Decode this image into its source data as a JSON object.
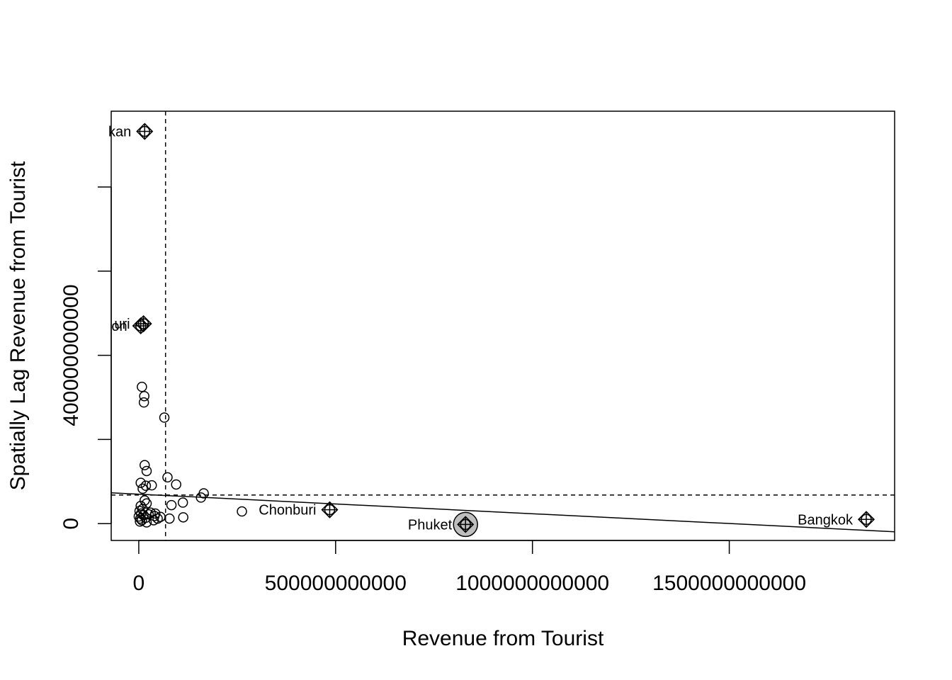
{
  "chart_data": {
    "type": "scatter",
    "title": "",
    "xlabel": "Revenue from Tourist",
    "ylabel": "Spatially Lag Revenue from Tourist",
    "xlim": [
      -70000000000,
      1920000000000
    ],
    "ylim": [
      -40000000000,
      980000000000
    ],
    "x_ticks": [
      0,
      500000000000,
      1000000000000,
      1500000000000
    ],
    "x_tick_labels": [
      "0",
      "500000000000",
      "1000000000000",
      "1500000000000"
    ],
    "y_ticks": [
      0,
      200000000000,
      400000000000,
      600000000000,
      800000000000
    ],
    "y_tick_labels": [
      "0",
      "",
      "400000000000",
      "",
      ""
    ],
    "mean_x": 68000000000,
    "mean_y": 68000000000,
    "regression_line": {
      "intercept": 70000000000,
      "slope": -0.0465
    },
    "grid": false,
    "legend": "none",
    "points": [
      {
        "x": 8000000000,
        "y": 325000000000
      },
      {
        "x": 14000000000,
        "y": 303000000000
      },
      {
        "x": 13000000000,
        "y": 288000000000
      },
      {
        "x": 65000000000,
        "y": 252000000000
      },
      {
        "x": 15000000000,
        "y": 139000000000
      },
      {
        "x": 20000000000,
        "y": 125000000000
      },
      {
        "x": 73000000000,
        "y": 110000000000
      },
      {
        "x": 95000000000,
        "y": 93000000000
      },
      {
        "x": 5000000000,
        "y": 97000000000
      },
      {
        "x": 18000000000,
        "y": 90000000000
      },
      {
        "x": 33000000000,
        "y": 91000000000
      },
      {
        "x": 10000000000,
        "y": 83000000000
      },
      {
        "x": 165000000000,
        "y": 72000000000
      },
      {
        "x": 158000000000,
        "y": 62000000000
      },
      {
        "x": 112000000000,
        "y": 50000000000
      },
      {
        "x": 83000000000,
        "y": 44000000000
      },
      {
        "x": 262000000000,
        "y": 29000000000
      },
      {
        "x": 15000000000,
        "y": 55000000000
      },
      {
        "x": 20000000000,
        "y": 48000000000
      },
      {
        "x": 5000000000,
        "y": 42000000000
      },
      {
        "x": 10000000000,
        "y": 35000000000
      },
      {
        "x": 2000000000,
        "y": 30000000000
      },
      {
        "x": 6000000000,
        "y": 24000000000
      },
      {
        "x": 12000000000,
        "y": 20000000000
      },
      {
        "x": 0,
        "y": 17000000000
      },
      {
        "x": 4000000000,
        "y": 12000000000
      },
      {
        "x": 8000000000,
        "y": 8000000000
      },
      {
        "x": 18000000000,
        "y": 14000000000
      },
      {
        "x": 25000000000,
        "y": 22000000000
      },
      {
        "x": 40000000000,
        "y": 18000000000
      },
      {
        "x": 48000000000,
        "y": 12000000000
      },
      {
        "x": 55000000000,
        "y": 16000000000
      },
      {
        "x": 78000000000,
        "y": 12000000000
      },
      {
        "x": 113000000000,
        "y": 15000000000
      },
      {
        "x": 38000000000,
        "y": 8000000000
      },
      {
        "x": 20000000000,
        "y": 3000000000
      },
      {
        "x": 3000000000,
        "y": 5000000000
      },
      {
        "x": 30000000000,
        "y": 26000000000
      },
      {
        "x": 42000000000,
        "y": 24000000000
      }
    ],
    "influential": [
      {
        "label": "Samut Prakan",
        "shown_label": "kan",
        "x": 15000000000,
        "y": 932000000000,
        "label_side": "left",
        "highlight": false
      },
      {
        "label": "Nonthaburi",
        "shown_label": "uri",
        "x": 12000000000,
        "y": 475000000000,
        "label_side": "left",
        "highlight": false
      },
      {
        "label": "Pathum Thani",
        "shown_label": "on",
        "x": 5000000000,
        "y": 470000000000,
        "label_side": "left",
        "highlight": false
      },
      {
        "label": "Chonburi",
        "shown_label": "Chonburi",
        "x": 485000000000,
        "y": 33000000000,
        "label_side": "left",
        "highlight": false
      },
      {
        "label": "Phuket",
        "shown_label": "Phuket",
        "x": 830000000000,
        "y": -2000000000,
        "label_side": "left",
        "highlight": true
      },
      {
        "label": "Bangkok",
        "shown_label": "Bangkok",
        "x": 1848000000000,
        "y": 10000000000,
        "label_side": "left",
        "highlight": false
      }
    ],
    "colors": {
      "highlight_fill": "#bebebe",
      "stroke": "#000000"
    }
  }
}
